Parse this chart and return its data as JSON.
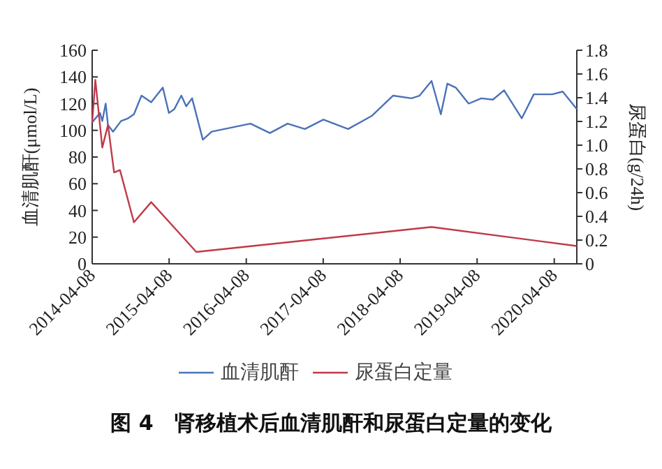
{
  "chart_data": {
    "type": "line",
    "title": "图 4　肾移植术后血清肌酐和尿蛋白定量的变化",
    "ylabel": "血清肌酐(μmol/L)",
    "y2label": "尿蛋白(g/24h)",
    "xlim": [
      "2014-04-08",
      "2020-07-24"
    ],
    "xticks": [
      "2014-04-08",
      "2015-04-08",
      "2016-04-08",
      "2017-04-08",
      "2018-04-08",
      "2019-04-08",
      "2020-04-08"
    ],
    "ylim": [
      0,
      160
    ],
    "yticks": [
      0,
      20,
      40,
      60,
      80,
      100,
      120,
      140,
      160
    ],
    "y2lim": [
      0,
      1.8
    ],
    "y2ticks": [
      0,
      {
        "value": 0.2,
        "label": "0.2"
      },
      {
        "value": 0.4,
        "label": "0.4"
      },
      {
        "value": 0.6,
        "label": "0.6"
      },
      {
        "value": 0.8,
        "label": "0.8"
      },
      {
        "value": 1,
        "label": "1.0"
      },
      {
        "value": 1.2,
        "label": "1.2"
      },
      {
        "value": 1.4,
        "label": "1.4"
      },
      {
        "value": 1.6,
        "label": "1.6"
      },
      {
        "value": 1.8,
        "label": "1.8"
      }
    ],
    "legend": "bottom",
    "grid": false,
    "marker": "none",
    "line_style": "solid",
    "series": [
      {
        "name": "血清肌酐",
        "color": "#4a72b8",
        "x": [
          "2014-04-08",
          "2014-05-15",
          "2014-05-26",
          "2014-06-11",
          "2014-06-22",
          "2014-07-16",
          "2014-08-23",
          "2014-09-25",
          "2014-10-23",
          "2014-11-28",
          "2015-01-13",
          "2015-03-09",
          "2015-04-07",
          "2015-05-03",
          "2015-06-05",
          "2015-06-28",
          "2015-07-26",
          "2015-09-15",
          "2015-10-27",
          "2016-04-28",
          "2016-07-29",
          "2016-10-21",
          "2017-01-11",
          "2017-04-09",
          "2017-08-04",
          "2017-11-26",
          "2018-03-05",
          "2018-06-01",
          "2018-07-09",
          "2018-09-04",
          "2018-10-18",
          "2018-11-18",
          "2018-12-28",
          "2019-02-27",
          "2019-04-28",
          "2019-06-22",
          "2019-08-14",
          "2019-11-06",
          "2020-01-02",
          "2020-03-30",
          "2020-05-18",
          "2020-07-24"
        ],
        "values": [
          106,
          113,
          107,
          120,
          104,
          99,
          107,
          109,
          112,
          126,
          121,
          132,
          113,
          116,
          126,
          118,
          124,
          93,
          99,
          105,
          98,
          105,
          101,
          108,
          101,
          111,
          126,
          124,
          126,
          137,
          112,
          135,
          132,
          120,
          124,
          123,
          130,
          109,
          127,
          127,
          129,
          116
        ]
      },
      {
        "name": "尿蛋白定量",
        "color": "#c0394a",
        "axis": "y2",
        "x": [
          "2014-04-08",
          "2014-04-23",
          "2014-05-26",
          "2014-06-22",
          "2014-07-21",
          "2014-08-18",
          "2014-10-23",
          "2015-01-13",
          "2015-08-15",
          "2018-09-04",
          "2020-07-24"
        ],
        "values": [
          1.19,
          1.55,
          0.98,
          1.17,
          0.77,
          0.79,
          0.35,
          0.52,
          0.1,
          0.31,
          0.15
        ]
      }
    ]
  }
}
